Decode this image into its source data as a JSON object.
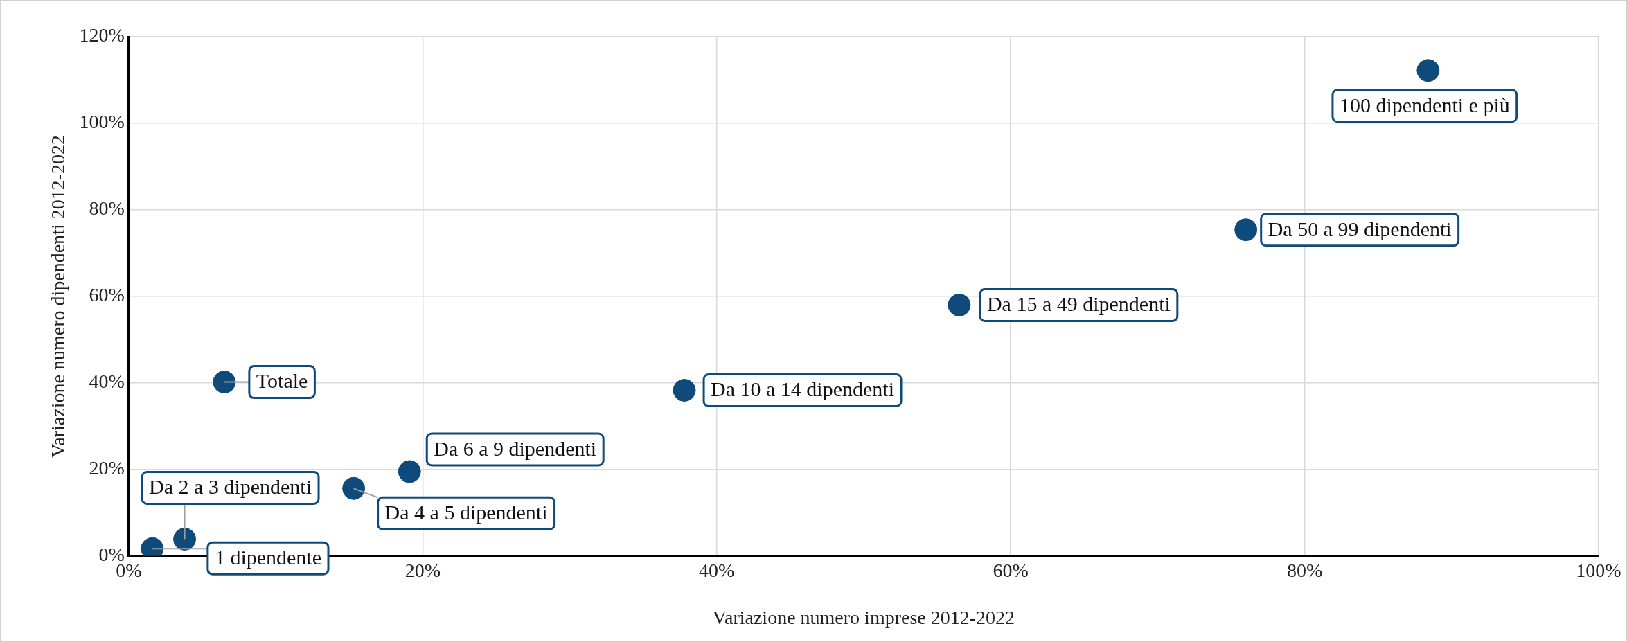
{
  "chart_data": {
    "type": "scatter",
    "xlabel": "Variazione numero imprese 2012-2022",
    "ylabel": "Variazione numero dipendenti 2012-2022",
    "x": [
      1.6,
      3.8,
      15.3,
      19.1,
      37.8,
      56.5,
      76.0,
      88.4,
      6.5
    ],
    "values": [
      1.7,
      3.9,
      15.6,
      19.5,
      38.3,
      58.0,
      75.4,
      112.2,
      40.2
    ],
    "color": "#0e4a7a",
    "marker": "circle",
    "grid": true,
    "legend": false,
    "xlim": [
      0,
      100
    ],
    "xticks": [
      {
        "value": 0,
        "label": "0%"
      },
      {
        "value": 20,
        "label": "20%"
      },
      {
        "value": 40,
        "label": "40%"
      },
      {
        "value": 60,
        "label": "60%"
      },
      {
        "value": 80,
        "label": "80%"
      },
      {
        "value": 100,
        "label": "100%"
      }
    ],
    "ylim": [
      0,
      120
    ],
    "yticks": [
      {
        "value": 0,
        "label": "0%"
      },
      {
        "value": 20,
        "label": "20%"
      },
      {
        "value": 40,
        "label": "40%"
      },
      {
        "value": 60,
        "label": "60%"
      },
      {
        "value": 80,
        "label": "80%"
      },
      {
        "value": 100,
        "label": "100%"
      },
      {
        "value": 120,
        "label": "120%"
      }
    ],
    "annotations": [
      {
        "text": "1 dipendente",
        "x": 1.6,
        "y": 1.7
      },
      {
        "text": "Da 2 a 3 dipendenti",
        "x": 3.8,
        "y": 3.9
      },
      {
        "text": "Da 4 a 5 dipendenti",
        "x": 15.3,
        "y": 15.6
      },
      {
        "text": "Da 6 a 9 dipendenti",
        "x": 19.1,
        "y": 19.5
      },
      {
        "text": "Da 10 a 14 dipendenti",
        "x": 37.8,
        "y": 38.3
      },
      {
        "text": "Da 15 a 49 dipendenti",
        "x": 56.5,
        "y": 58.0
      },
      {
        "text": "Da 50 a 99 dipendenti",
        "x": 76.0,
        "y": 75.4
      },
      {
        "text": "100 dipendenti e più",
        "x": 88.4,
        "y": 112.2
      },
      {
        "text": "Totale",
        "x": 6.5,
        "y": 40.2
      }
    ]
  }
}
